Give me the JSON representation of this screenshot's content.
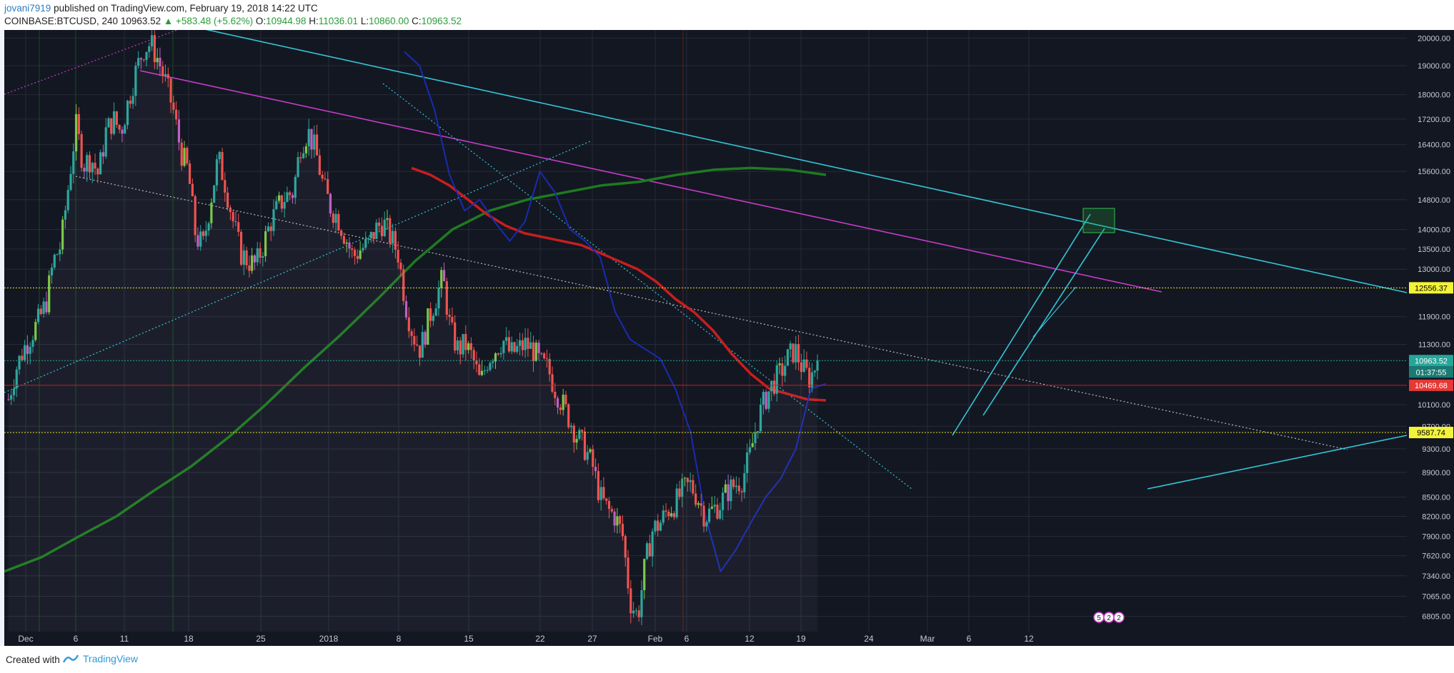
{
  "header": {
    "publisher": "jovani7919",
    "published_text": "published on TradingView.com, February 19, 2018 14:22 UTC",
    "symbol": "COINBASE:BTCUSD, 240",
    "last": "10963.52",
    "change": "+583.48 (+5.62%)",
    "ohlc": {
      "o_label": "O:",
      "o": "10944.98",
      "h_label": "H:",
      "h": "11036.01",
      "l_label": "L:",
      "l": "10860.00",
      "c_label": "C:",
      "c": "10963.52"
    }
  },
  "footer": {
    "created_with": "Created with",
    "brand": "TradingView",
    "brand_icon": "tradingview-logo-icon"
  },
  "colors": {
    "background": "#131722",
    "grid": "#262b38",
    "up": "#26a69a",
    "down": "#ef5350",
    "ema_green": "#1e7b20",
    "ema_red": "#c81e1e",
    "ema_blue": "#1a2bb0",
    "cyan": "#33c6d6",
    "magenta": "#c83cc8",
    "yellow": "#e6e62a"
  },
  "chart_data": {
    "type": "candlestick",
    "x_tick_labels": [
      "Dec",
      "6",
      "11",
      "18",
      "25",
      "2018",
      "8",
      "15",
      "22",
      "27",
      "Feb",
      "6",
      "12",
      "19",
      "24",
      "Mar",
      "6",
      "12"
    ],
    "y_scale": "log",
    "y_range": [
      6650,
      20200
    ],
    "y_tick_labels": [
      "20000.00",
      "19000.00",
      "18000.00",
      "17200.00",
      "16400.00",
      "15600.00",
      "14800.00",
      "14000.00",
      "13500.00",
      "13000.00",
      "11900.00",
      "11300.00",
      "10100.00",
      "9700.00",
      "9300.00",
      "8900.00",
      "8500.00",
      "8200.00",
      "7900.00",
      "7620.00",
      "7340.00",
      "7065.00",
      "6805.00"
    ],
    "close_path": [
      10200,
      10800,
      11200,
      11500,
      11800,
      12200,
      13200,
      13600,
      15200,
      17000,
      15800,
      16000,
      15500,
      16800,
      17200,
      16800,
      17800,
      18800,
      19600,
      19800,
      19200,
      18400,
      17500,
      16200,
      15600,
      13800,
      13600,
      14800,
      16000,
      15200,
      14200,
      13400,
      13200,
      13100,
      13600,
      14200,
      14600,
      14900,
      15000,
      16400,
      16800,
      16200,
      15200,
      14600,
      14300,
      13800,
      13300,
      13500,
      13600,
      14000,
      14200,
      13800,
      13400,
      12200,
      11500,
      11200,
      11800,
      12300,
      12800,
      11600,
      11200,
      11300,
      11000,
      10500,
      11000,
      11200,
      11400,
      11100,
      11200,
      11300,
      11200,
      10900,
      10800,
      10400,
      10100,
      9800,
      9500,
      9300,
      9000,
      8500,
      8300,
      8200,
      7900,
      7000,
      6800,
      7500,
      8000,
      8100,
      8300,
      8400,
      8600,
      8700,
      8500,
      8200,
      8300,
      8400,
      8600,
      8700,
      8800,
      9200,
      9800,
      10200,
      10500,
      10700,
      11000,
      11200,
      10800,
      10600,
      10963.52
    ],
    "moving_averages": [
      {
        "color": "#1e7b20",
        "values": [
          7400,
          7600,
          7900,
          8200,
          8600,
          9000,
          9500,
          10100,
          10800,
          11500,
          12300,
          13200,
          14000,
          14500,
          14800,
          15000,
          15200,
          15300,
          15500,
          15650,
          15700,
          15650,
          15500
        ]
      },
      {
        "color": "#c81e1e",
        "values": [
          15700,
          15500,
          15200,
          14800,
          14400,
          14100,
          13900,
          13800,
          13700,
          13600,
          13400,
          13200,
          13000,
          12700,
          12300,
          12000,
          11600,
          11100,
          10700,
          10400,
          10300,
          10200,
          10180
        ]
      },
      {
        "color": "#1a2bb0",
        "values": [
          19500,
          19000,
          17500,
          15500,
          14500,
          14800,
          14200,
          13700,
          14200,
          15600,
          15000,
          14000,
          13700,
          13300,
          12000,
          11400,
          11200,
          11000,
          10400,
          9600,
          8200,
          7400,
          7700,
          8100,
          8500,
          8800,
          9300,
          10400,
          10500
        ]
      }
    ],
    "price_labels": [
      {
        "value": 12556.37,
        "text": "12556.37",
        "bg": "#f3f33a",
        "fg": "#000000"
      },
      {
        "value": 10963.52,
        "text": "10963.52",
        "bg": "#26a69a",
        "fg": "#ffffff"
      },
      {
        "value": 10469.68,
        "text": "10469.68",
        "bg": "#e53935",
        "fg": "#ffffff"
      },
      {
        "value": 9587.74,
        "text": "9587.74",
        "bg": "#f3f33a",
        "fg": "#000000"
      }
    ],
    "countdown": "01:37:55",
    "horizontal_levels": [
      12556.37,
      10963.52,
      10469.68,
      9587.74
    ],
    "event_badges": [
      "5",
      "2",
      "2"
    ]
  }
}
